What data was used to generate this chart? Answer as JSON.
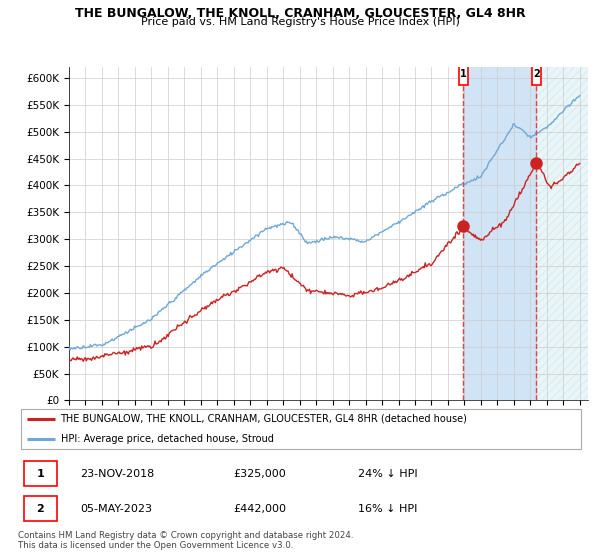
{
  "title": "THE BUNGALOW, THE KNOLL, CRANHAM, GLOUCESTER, GL4 8HR",
  "subtitle": "Price paid vs. HM Land Registry's House Price Index (HPI)",
  "ylabel_ticks": [
    "£0",
    "£50K",
    "£100K",
    "£150K",
    "£200K",
    "£250K",
    "£300K",
    "£350K",
    "£400K",
    "£450K",
    "£500K",
    "£550K",
    "£600K"
  ],
  "ytick_values": [
    0,
    50000,
    100000,
    150000,
    200000,
    250000,
    300000,
    350000,
    400000,
    450000,
    500000,
    550000,
    600000
  ],
  "ylim": [
    0,
    620000
  ],
  "xlim_start": 1995,
  "xlim_end": 2026.5,
  "xticks": [
    1995,
    1996,
    1997,
    1998,
    1999,
    2000,
    2001,
    2002,
    2003,
    2004,
    2005,
    2006,
    2007,
    2008,
    2009,
    2010,
    2011,
    2012,
    2013,
    2014,
    2015,
    2016,
    2017,
    2018,
    2019,
    2020,
    2021,
    2022,
    2023,
    2024,
    2025,
    2026
  ],
  "hpi_color": "#6fa8d8",
  "hpi_fill_color": "#d0e4f5",
  "price_color": "#cc2222",
  "vline_color": "#dd4444",
  "marker1_date": 2018.92,
  "marker1_price": 325000,
  "marker2_date": 2023.37,
  "marker2_price": 442000,
  "legend_entry1": "THE BUNGALOW, THE KNOLL, CRANHAM, GLOUCESTER, GL4 8HR (detached house)",
  "legend_entry2": "HPI: Average price, detached house, Stroud",
  "table_row1": [
    "1",
    "23-NOV-2018",
    "£325,000",
    "24% ↓ HPI"
  ],
  "table_row2": [
    "2",
    "05-MAY-2023",
    "£442,000",
    "16% ↓ HPI"
  ],
  "footnote": "Contains HM Land Registry data © Crown copyright and database right 2024.\nThis data is licensed under the Open Government Licence v3.0.",
  "background_color": "#ffffff",
  "plot_bg_color": "#ffffff",
  "grid_color": "#cccccc"
}
